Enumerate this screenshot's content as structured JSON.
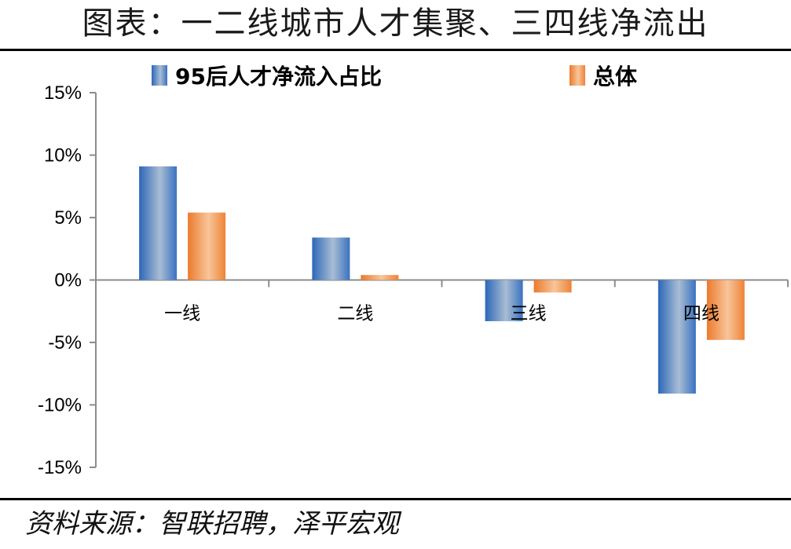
{
  "header": {
    "title": "图表：一二线城市人才集聚、三四线净流出"
  },
  "footer": {
    "source": "资料来源：智联招聘，泽平宏观"
  },
  "colors": {
    "series1": "#4a7fc0",
    "series2": "#f08a3c"
  },
  "chart_data": {
    "type": "bar",
    "categories": [
      "一线",
      "二线",
      "三线",
      "四线"
    ],
    "series": [
      {
        "name": "95后人才净流入占比",
        "values": [
          9.1,
          3.4,
          -3.3,
          -9.1
        ]
      },
      {
        "name": "总体",
        "values": [
          5.4,
          0.4,
          -1.0,
          -4.8
        ]
      }
    ],
    "ylim": [
      -15,
      15
    ],
    "yticks": [
      15,
      10,
      5,
      0,
      -5,
      -10,
      -15
    ],
    "ytick_labels": [
      "15%",
      "10%",
      "5%",
      "0%",
      "-5%",
      "-10%",
      "-15%"
    ],
    "legend_position": "top",
    "grid": false
  }
}
